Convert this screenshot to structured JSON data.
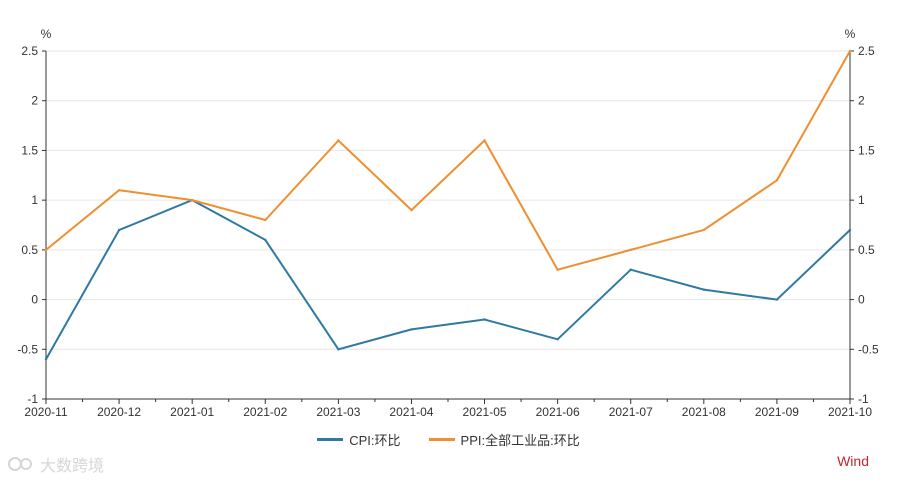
{
  "chart_data": {
    "type": "line",
    "categories": [
      "2020-11",
      "2020-12",
      "2021-01",
      "2021-02",
      "2021-03",
      "2021-04",
      "2021-05",
      "2021-06",
      "2021-07",
      "2021-08",
      "2021-09",
      "2021-10"
    ],
    "series": [
      {
        "name": "CPI:环比",
        "color": "#2e7aa3",
        "axis": "left",
        "values": [
          -0.6,
          0.7,
          1.0,
          0.6,
          -0.5,
          -0.3,
          -0.2,
          -0.4,
          0.3,
          0.1,
          0.0,
          0.7
        ]
      },
      {
        "name": "PPI:全部工业品:环比",
        "color": "#ee8f30",
        "axis": "right",
        "values": [
          0.5,
          1.1,
          1.0,
          0.8,
          1.6,
          0.9,
          1.6,
          0.3,
          0.5,
          0.7,
          1.2,
          2.5
        ]
      }
    ],
    "ylim": [
      -1,
      2.5
    ],
    "yticks": [
      "-1",
      "-0.5",
      "0",
      "0.5",
      "1",
      "1.5",
      "2",
      "2.5"
    ],
    "yticks_right": [
      "-1",
      "-0.5",
      "0",
      "0.5",
      "1",
      "1.5",
      "2",
      "2.5"
    ],
    "y_unit_left": "%",
    "y_unit_right": "%",
    "grid": true,
    "legend_position": "bottom"
  },
  "watermark_text": "大数跨境",
  "brand": "Wind"
}
